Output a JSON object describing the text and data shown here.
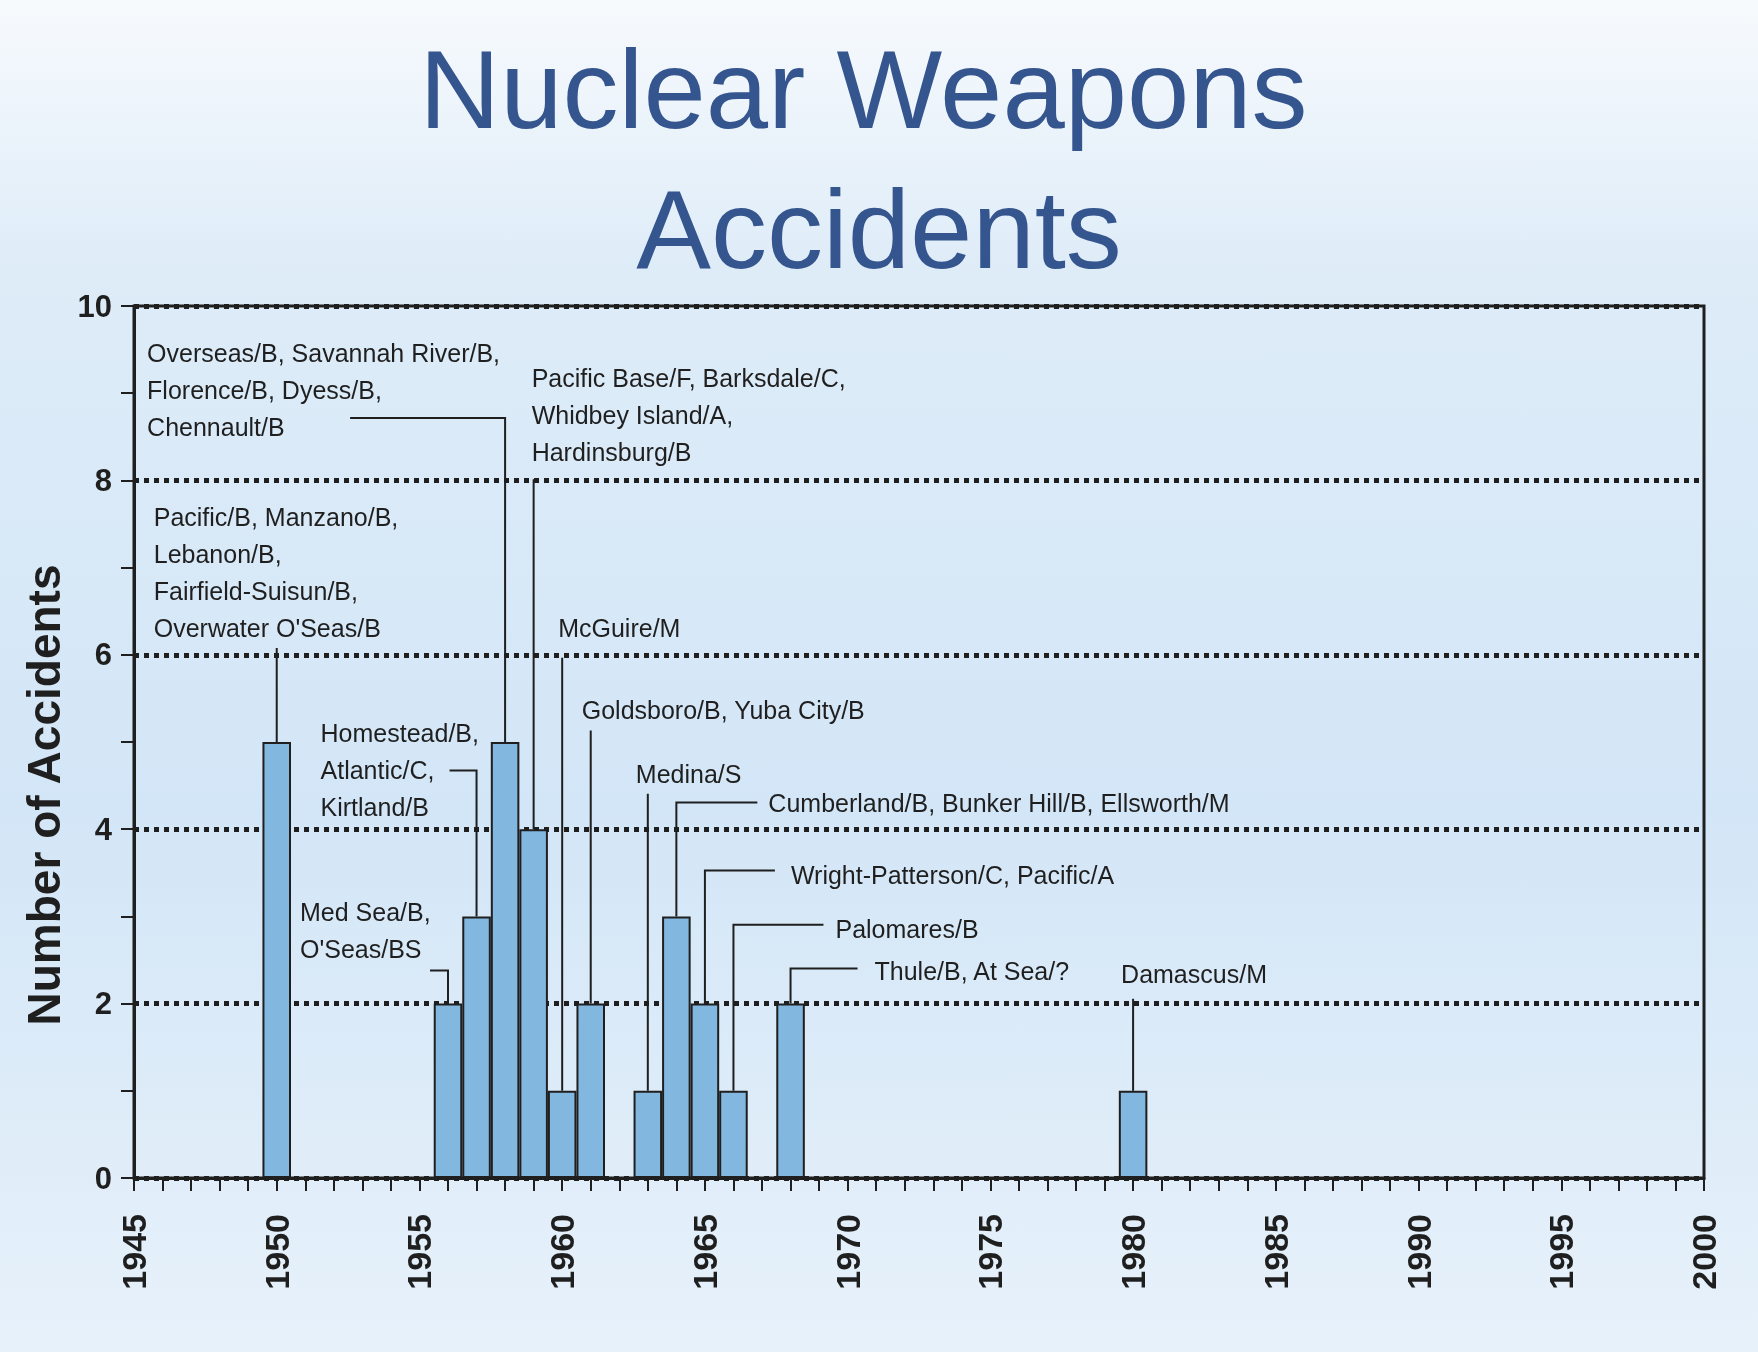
{
  "chart_data": {
    "type": "bar",
    "title": "Nuclear Weapons Accidents",
    "ylabel": "Number of Accidents",
    "x": [
      1950,
      1956,
      1957,
      1958,
      1959,
      1960,
      1961,
      1963,
      1964,
      1965,
      1966,
      1968,
      1980
    ],
    "values": [
      5,
      2,
      3,
      5,
      4,
      1,
      2,
      1,
      3,
      2,
      1,
      2,
      1
    ],
    "color": "#82b7e0",
    "xlim": [
      1945,
      2000
    ],
    "xticks": [
      1945,
      {
        "value": 1946,
        "label": null
      },
      {
        "value": 1947,
        "label": null
      },
      {
        "value": 1948,
        "label": null
      },
      {
        "value": 1949,
        "label": null
      },
      1950,
      {
        "value": 1951,
        "label": null
      },
      {
        "value": 1952,
        "label": null
      },
      {
        "value": 1953,
        "label": null
      },
      {
        "value": 1954,
        "label": null
      },
      1955,
      {
        "value": 1956,
        "label": null
      },
      {
        "value": 1957,
        "label": null
      },
      {
        "value": 1958,
        "label": null
      },
      {
        "value": 1959,
        "label": null
      },
      1960,
      {
        "value": 1961,
        "label": null
      },
      {
        "value": 1962,
        "label": null
      },
      {
        "value": 1963,
        "label": null
      },
      {
        "value": 1964,
        "label": null
      },
      1965,
      {
        "value": 1966,
        "label": null
      },
      {
        "value": 1967,
        "label": null
      },
      {
        "value": 1968,
        "label": null
      },
      {
        "value": 1969,
        "label": null
      },
      1970,
      {
        "value": 1971,
        "label": null
      },
      {
        "value": 1972,
        "label": null
      },
      {
        "value": 1973,
        "label": null
      },
      {
        "value": 1974,
        "label": null
      },
      1975,
      {
        "value": 1976,
        "label": null
      },
      {
        "value": 1977,
        "label": null
      },
      {
        "value": 1978,
        "label": null
      },
      {
        "value": 1979,
        "label": null
      },
      1980,
      {
        "value": 1981,
        "label": null
      },
      {
        "value": 1982,
        "label": null
      },
      {
        "value": 1983,
        "label": null
      },
      {
        "value": 1984,
        "label": null
      },
      1985,
      {
        "value": 1986,
        "label": null
      },
      {
        "value": 1987,
        "label": null
      },
      {
        "value": 1988,
        "label": null
      },
      {
        "value": 1989,
        "label": null
      },
      1990,
      {
        "value": 1991,
        "label": null
      },
      {
        "value": 1992,
        "label": null
      },
      {
        "value": 1993,
        "label": null
      },
      {
        "value": 1994,
        "label": null
      },
      1995,
      {
        "value": 1996,
        "label": null
      },
      {
        "value": 1997,
        "label": null
      },
      {
        "value": 1998,
        "label": null
      },
      {
        "value": 1999,
        "label": null
      },
      2000
    ],
    "ylim": [
      0,
      10
    ],
    "yticks": [
      0,
      {
        "value": 1,
        "label": null
      },
      2,
      {
        "value": 3,
        "label": null
      },
      4,
      {
        "value": 5,
        "label": null
      },
      6,
      {
        "value": 7,
        "label": null
      },
      8,
      {
        "value": 9,
        "label": null
      },
      10
    ],
    "grid": "y",
    "annotations": [
      {
        "text": "Pacific/B, Manzano/B, Lebanon/B, Fairfield-Suisun/B, Overwater O'Seas/B",
        "x": 1950,
        "y": 5
      },
      {
        "text": "Med Sea/B, O'Seas/BS",
        "x": 1956,
        "y": 2
      },
      {
        "text": "Homestead/B, Atlantic/C, Kirtland/B",
        "x": 1957,
        "y": 3
      },
      {
        "text": "Overseas/B, Savannah River/B, Florence/B, Dyess/B, Chennault/B",
        "x": 1958,
        "y": 5
      },
      {
        "text": "Pacific Base/F, Barksdale/C, Whidbey Island/A, Hardinsburg/B",
        "x": 1959,
        "y": 4
      },
      {
        "text": "McGuire/M",
        "x": 1960,
        "y": 1
      },
      {
        "text": "Goldsboro/B, Yuba City/B",
        "x": 1961,
        "y": 2
      },
      {
        "text": "Medina/S",
        "x": 1963,
        "y": 1
      },
      {
        "text": "Cumberland/B, Bunker Hill/B, Ellsworth/M",
        "x": 1964,
        "y": 3
      },
      {
        "text": "Wright-Patterson/C, Pacific/A",
        "x": 1965,
        "y": 2
      },
      {
        "text": "Palomares/B",
        "x": 1966,
        "y": 1
      },
      {
        "text": "Thule/B, At Sea/?",
        "x": 1968,
        "y": 2
      },
      {
        "text": "Damascus/M",
        "x": 1980,
        "y": 1
      }
    ]
  }
}
